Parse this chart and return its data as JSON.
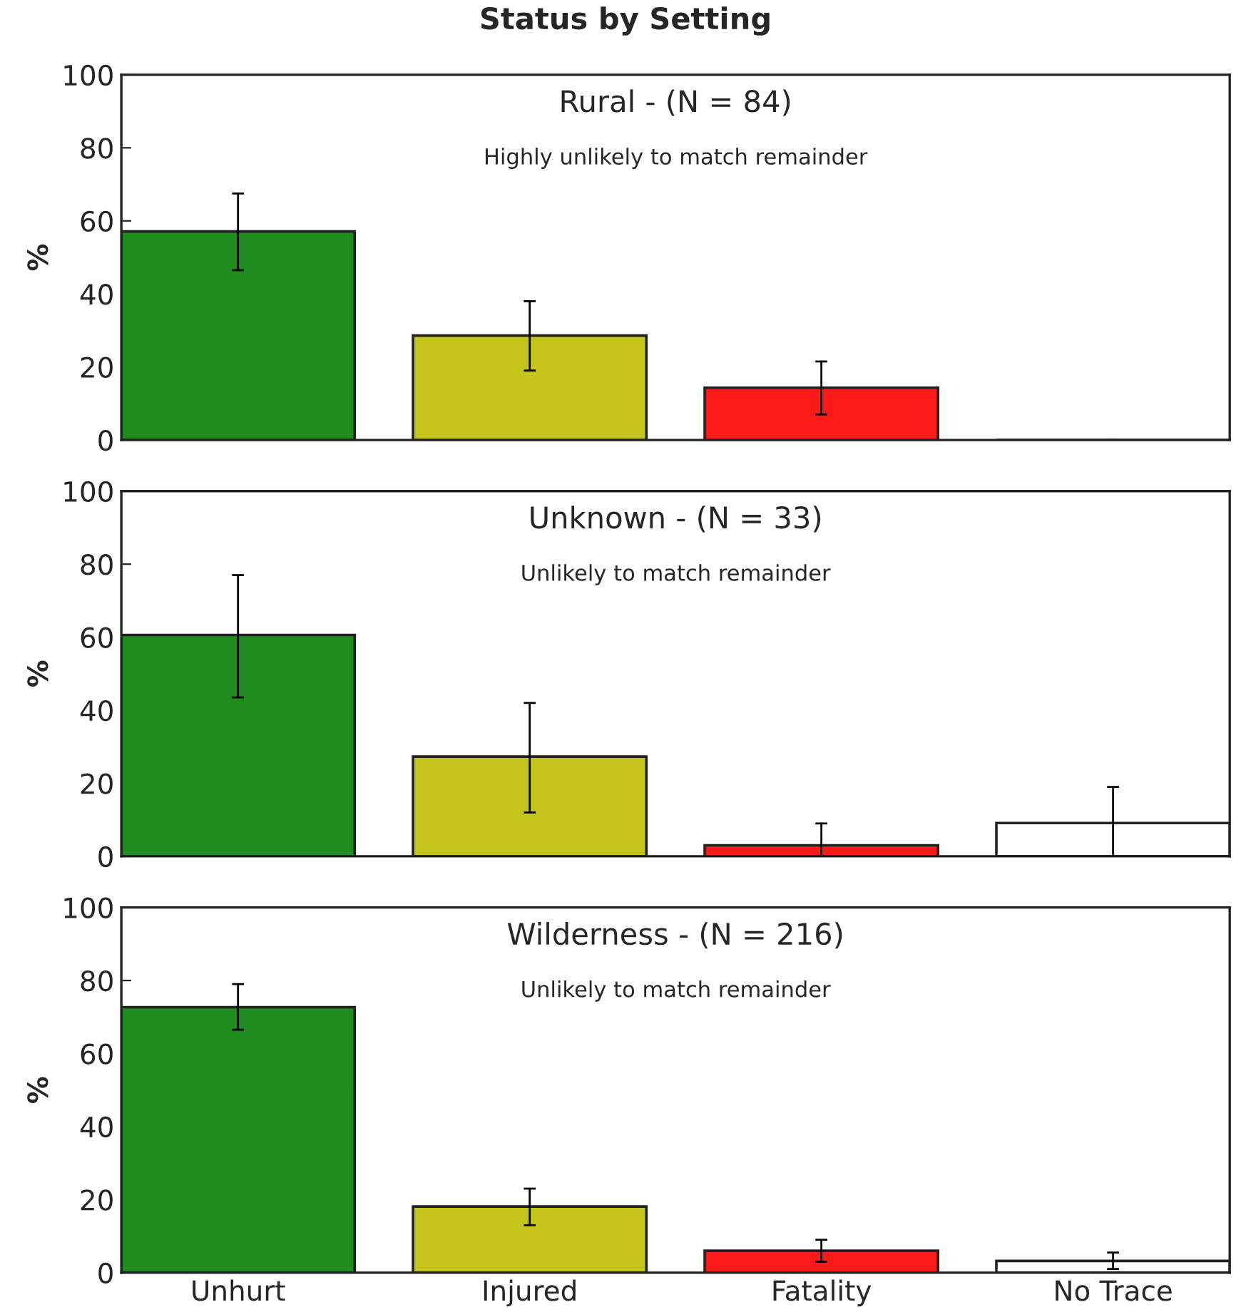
{
  "chart_data": [
    {
      "type": "bar",
      "title": "Rural - (N = 84)",
      "subtitle": "Highly unlikely to match remainder",
      "ylabel": "%",
      "annotations": [
        "Status by Setting"
      ],
      "categories": [
        null,
        null,
        null,
        null
      ],
      "values": [
        57.1,
        28.6,
        14.3,
        0
      ],
      "colors": [
        "#1e8c1e",
        "#c5c51c",
        "#ff1a1a",
        "#222222"
      ],
      "errors": [
        [
          46.5,
          67.5
        ],
        [
          19,
          38
        ],
        [
          7,
          21.5
        ],
        [
          0,
          0
        ]
      ],
      "ylim": [
        0,
        100
      ],
      "yticks": [
        0,
        20,
        40,
        60,
        80,
        100
      ],
      "tick_labels": "y",
      "grid": false,
      "legend": false
    },
    {
      "type": "bar",
      "title": "Unknown - (N = 33)",
      "subtitle": "Unlikely to match remainder",
      "ylabel": "%",
      "categories": [
        null,
        null,
        null,
        null
      ],
      "values": [
        60.6,
        27.3,
        3.0,
        9.1
      ],
      "colors": [
        "#1e8c1e",
        "#c5c51c",
        "#ff1a1a",
        "#ffffff"
      ],
      "errors": [
        [
          43.5,
          77
        ],
        [
          12,
          42
        ],
        [
          0,
          9
        ],
        [
          0,
          19
        ]
      ],
      "ylim": [
        0,
        100
      ],
      "yticks": [
        0,
        20,
        40,
        60,
        80,
        100
      ],
      "tick_labels": "y",
      "grid": false,
      "legend": false
    },
    {
      "type": "bar",
      "title": "Wilderness - (N = 216)",
      "subtitle": "Unlikely to match remainder",
      "ylabel": "%",
      "categories": [
        "Unhurt",
        "Injured",
        "Fatality",
        "No Trace"
      ],
      "values": [
        72.7,
        18.1,
        6.0,
        3.2
      ],
      "colors": [
        "#1e8c1e",
        "#c5c51c",
        "#ff1a1a",
        "#ffffff"
      ],
      "errors": [
        [
          66.5,
          79
        ],
        [
          13,
          23
        ],
        [
          3,
          9
        ],
        [
          1,
          5.5
        ]
      ],
      "ylim": [
        0,
        100
      ],
      "yticks": [
        0,
        20,
        40,
        60,
        80,
        100
      ],
      "grid": false,
      "legend": false
    }
  ]
}
